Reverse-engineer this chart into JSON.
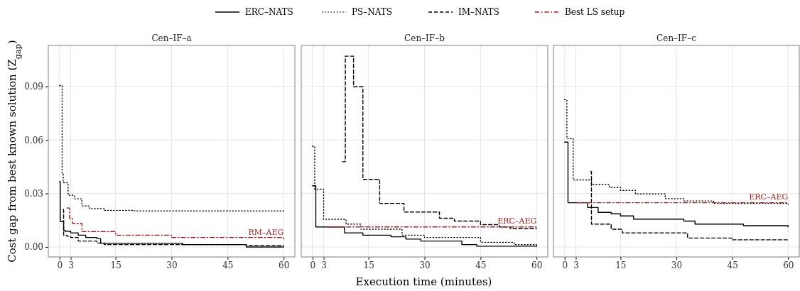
{
  "chart_data": [
    {
      "type": "step",
      "title": "Cen–IF–a",
      "ylabel": "Cost gap from best known solution (Z$_{gap}$)",
      "xlim": [
        -3,
        63
      ],
      "xticks": [
        0,
        3,
        15,
        30,
        45,
        60
      ],
      "ylim": [
        -0.0056,
        0.113
      ],
      "yticks": [
        {
          "value": 0,
          "label": "0.00"
        },
        {
          "value": 0.03,
          "label": "0.03"
        },
        {
          "value": 0.06,
          "label": "0.06"
        },
        {
          "value": 0.09,
          "label": "0.09"
        }
      ],
      "grid": true,
      "legend": "top",
      "series": [
        {
          "name": "ERC–NATS",
          "color": "#000000",
          "line_style": "solid",
          "x": [
            0,
            0.2,
            1.1,
            1.5,
            3,
            5,
            7,
            10,
            11,
            33,
            50,
            60
          ],
          "values": [
            0.0366,
            0.0143,
            0.0092,
            0.0088,
            0.0079,
            0.0066,
            0.0053,
            0.0046,
            0.002,
            0.0013,
            0,
            0
          ]
        },
        {
          "name": "PS–NATS",
          "color": "#000000",
          "line_style": "dotted",
          "x": [
            0,
            0.7,
            1,
            2.3,
            4,
            6,
            8,
            12,
            20,
            60
          ],
          "values": [
            0.0905,
            0.041,
            0.036,
            0.029,
            0.027,
            0.023,
            0.0215,
            0.0205,
            0.0202,
            0.0198
          ]
        },
        {
          "name": "IM–NATS",
          "color": "#000000",
          "line_style": "dashed",
          "x": [
            1,
            1.1,
            2,
            3,
            5,
            10,
            12,
            50,
            60
          ],
          "values": [
            0.021,
            0.0066,
            0.006,
            0.0053,
            0.0033,
            0.0022,
            0.0013,
            0.0009,
            0.0009
          ]
        },
        {
          "name": "Best LS setup",
          "color": "#a51c1c",
          "line_style": "dashdot",
          "x": [
            2,
            2.7,
            3.5,
            6,
            15,
            30,
            60
          ],
          "values": [
            0.0218,
            0.0159,
            0.0132,
            0.0086,
            0.0066,
            0.0053,
            0.0046
          ]
        }
      ],
      "annotations": [
        "RM–AEG"
      ]
    },
    {
      "type": "step",
      "title": "Cen–IF–b",
      "xlabel": "Execution time (minutes)",
      "xlim": [
        -3,
        63
      ],
      "xticks": [
        0,
        3,
        15,
        30,
        45,
        60
      ],
      "ylim": [
        -0.0056,
        0.113
      ],
      "yticks": [
        {
          "value": 0,
          "label": null
        },
        {
          "value": 0.03,
          "label": null
        },
        {
          "value": 0.06,
          "label": null
        },
        {
          "value": 0.09,
          "label": null
        }
      ],
      "grid": true,
      "tick_labels": "x",
      "series": [
        {
          "color": "#000000",
          "line_style": "solid",
          "x": [
            0,
            0.9,
            8.6,
            13.5,
            21,
            25,
            29,
            40,
            44,
            60
          ],
          "values": [
            0.0343,
            0.0112,
            0.0079,
            0.0066,
            0.0057,
            0.0044,
            0.0033,
            0.0013,
            0.0004,
            0.0003
          ]
        },
        {
          "color": "#000000",
          "line_style": "dotted",
          "x": [
            0,
            0.6,
            3,
            9,
            13,
            24,
            30,
            45,
            54,
            60
          ],
          "values": [
            0.0565,
            0.0324,
            0.0155,
            0.0128,
            0.0099,
            0.0066,
            0.0053,
            0.0026,
            0.0013,
            0.0009
          ]
        },
        {
          "color": "#000000",
          "line_style": "dashed",
          "x": [
            8,
            8.8,
            11,
            13.5,
            18,
            24.5,
            34,
            38,
            45,
            50,
            53,
            60
          ],
          "values": [
            0.0478,
            0.107,
            0.0898,
            0.0379,
            0.0244,
            0.0196,
            0.0161,
            0.0145,
            0.0125,
            0.0112,
            0.0103,
            0.0103
          ]
        },
        {
          "color": "#a51c1c",
          "line_style": "dashdot",
          "x": [
            4,
            60
          ],
          "values": [
            0.0112,
            0.0112
          ]
        }
      ],
      "annotations": [
        "ERC–AEG"
      ]
    },
    {
      "type": "step",
      "title": "Cen–IF–c",
      "xlim": [
        -3,
        63
      ],
      "xticks": [
        0,
        3,
        15,
        30,
        45,
        60
      ],
      "ylim": [
        -0.0056,
        0.113
      ],
      "yticks": [
        {
          "value": 0,
          "label": null
        },
        {
          "value": 0.03,
          "label": null
        },
        {
          "value": 0.06,
          "label": null
        },
        {
          "value": 0.09,
          "label": null
        }
      ],
      "grid": true,
      "tick_labels": "x",
      "series": [
        {
          "color": "#000000",
          "line_style": "solid",
          "x": [
            0,
            0.9,
            6.2,
            9,
            12.5,
            15,
            18.5,
            32,
            35,
            48,
            60
          ],
          "values": [
            0.0588,
            0.0248,
            0.0221,
            0.0194,
            0.0186,
            0.0174,
            0.0156,
            0.0145,
            0.0128,
            0.0119,
            0.0112
          ]
        },
        {
          "color": "#000000",
          "line_style": "dotted",
          "x": [
            0,
            0.6,
            2.3,
            7.2,
            12,
            15,
            19,
            27,
            32,
            40,
            60
          ],
          "values": [
            0.0826,
            0.0608,
            0.0376,
            0.035,
            0.0334,
            0.0317,
            0.0297,
            0.0271,
            0.0258,
            0.0244,
            0.0238
          ]
        },
        {
          "color": "#000000",
          "line_style": "dashed",
          "x": [
            7,
            7.2,
            12.5,
            15.5,
            33,
            45,
            60
          ],
          "values": [
            0.0423,
            0.0128,
            0.0099,
            0.0079,
            0.005,
            0.004,
            0.0033
          ]
        },
        {
          "color": "#a51c1c",
          "line_style": "dashdot",
          "x": [
            3.5,
            60
          ],
          "values": [
            0.0248,
            0.0248
          ]
        }
      ],
      "annotations": [
        "ERC–AEG"
      ]
    }
  ]
}
